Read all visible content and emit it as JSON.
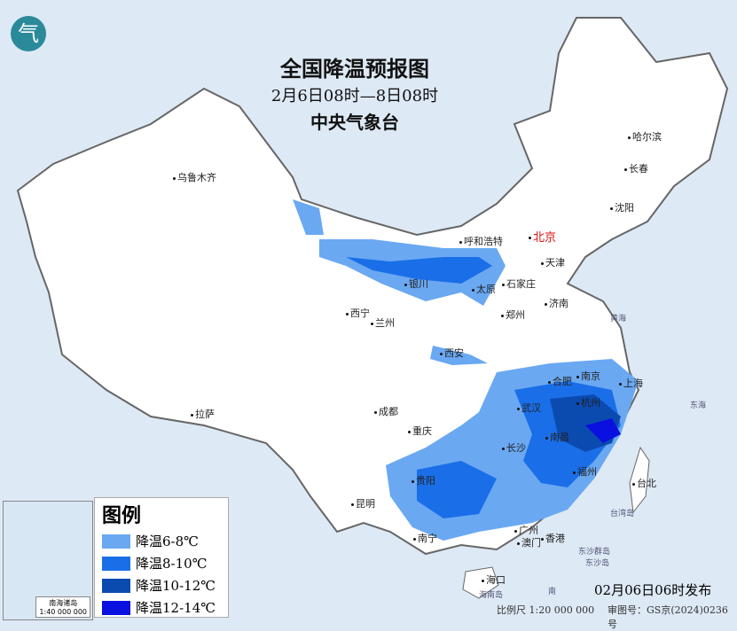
{
  "header": {
    "title": "全国降温预报图",
    "period": "2月6日08时—8日08时",
    "issuer": "中央气象台",
    "logo": "中央气象台 logo"
  },
  "cities": [
    "乌鲁木齐",
    "呼和浩特",
    "北京",
    "天津",
    "石家庄",
    "太原",
    "银川",
    "西宁",
    "兰州",
    "济南",
    "郑州",
    "西安",
    "合肥",
    "南京",
    "上海",
    "武汉",
    "杭州",
    "成都",
    "重庆",
    "长沙",
    "南昌",
    "福州",
    "台北",
    "贵阳",
    "昆明",
    "南宁",
    "广州",
    "澳门",
    "香港",
    "海口",
    "拉萨",
    "哈尔滨",
    "长春",
    "沈阳"
  ],
  "small_labels": [
    "台湾岛",
    "东沙群岛",
    "东沙岛",
    "黄海",
    "东海",
    "南",
    "海南岛"
  ],
  "legend": {
    "title": "图例",
    "items": [
      {
        "label": "降温6-8℃",
        "color": "#6aa8f2"
      },
      {
        "label": "降温8-10℃",
        "color": "#1a6fe8"
      },
      {
        "label": "降温10-12℃",
        "color": "#0b4bb0"
      },
      {
        "label": "降温12-14℃",
        "color": "#0a10e0"
      }
    ]
  },
  "inset": {
    "title": "南海诸岛",
    "scale": "1:40 000 000"
  },
  "footer": {
    "issued": "02月06日06时发布",
    "scale": "比例尺 1:20 000 000",
    "review": "审图号：GS京(2024)0236号"
  },
  "colors": {
    "sea": "#dde9f5",
    "land": "#ffffff",
    "border": "#777777"
  }
}
